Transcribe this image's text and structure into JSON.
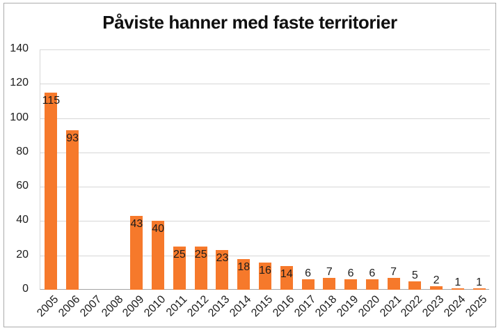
{
  "chart_data": {
    "type": "bar",
    "title": "Påviste hanner med faste territorier",
    "categories": [
      "2005",
      "2006",
      "2007",
      "2008",
      "2009",
      "2010",
      "2011",
      "2012",
      "2013",
      "2014",
      "2015",
      "2016",
      "2017",
      "2018",
      "2019",
      "2020",
      "2021",
      "2022",
      "2023",
      "2024",
      "2025"
    ],
    "values": [
      115,
      93,
      0,
      0,
      43,
      40,
      25,
      25,
      23,
      18,
      16,
      14,
      6,
      7,
      6,
      6,
      7,
      5,
      2,
      1,
      1
    ],
    "data_labels": true,
    "xlabel": "",
    "ylabel": "",
    "ylim": [
      0,
      140
    ],
    "yticks": [
      0,
      20,
      40,
      60,
      80,
      100,
      120,
      140
    ],
    "grid": true,
    "legend": false,
    "bar_color": "#F6792B"
  },
  "colors": {
    "bar": "#F6792B",
    "gridline": "#D6D6D6",
    "axis_line": "#A3A3A3",
    "text": "#1C1C1C",
    "frame_border": "#ABABAB",
    "background": "#FFFFFF"
  }
}
